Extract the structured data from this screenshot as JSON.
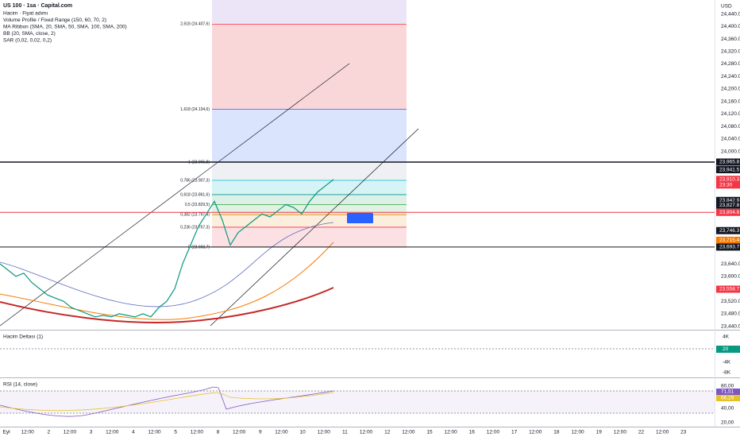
{
  "header": {
    "symbol": "US 100 · 1sa · Capital.com",
    "indicators": [
      "Hacim · Fiyat adımı",
      "Volume Profile / Fixed Range (150, 60, 70, 2)",
      "MA Ribbon (SMA, 20, SMA, 50, SMA, 100, SMA, 200)",
      "BB (20, SMA, close, 2)",
      "SAR (0,02, 0,02, 0,2)"
    ]
  },
  "price_axis": {
    "currency": "USD",
    "ticks": [
      "24,440.0",
      "24,400.0",
      "24,360.0",
      "24,320.0",
      "24,280.0",
      "24,240.0",
      "24,200.0",
      "24,160.0",
      "24,120.0",
      "24,080.0",
      "24,040.0",
      "24,000.0",
      "23,640.0",
      "23,600.0",
      "23,520.0",
      "23,480.0",
      "23,440.0"
    ],
    "badges": [
      {
        "label": "23,965.8",
        "price": 23965.8,
        "color": "#131722"
      },
      {
        "label": "23,941.5",
        "price": 23941.5,
        "color": "#131722"
      },
      {
        "label": "23,910.3",
        "price": 23910.3,
        "color": "#f23645",
        "timer": "23:30"
      },
      {
        "label": "23,842.9",
        "price": 23842.9,
        "color": "#131722"
      },
      {
        "label": "23,827.8",
        "price": 23827.8,
        "color": "#131722"
      },
      {
        "label": "23,804.8",
        "price": 23804.8,
        "color": "#f23645"
      },
      {
        "label": "23,746.3",
        "price": 23746.3,
        "color": "#131722"
      },
      {
        "label": "23,715.4",
        "price": 23715.4,
        "color": "#f57c00"
      },
      {
        "label": "23,693.7",
        "price": 23693.7,
        "color": "#131722"
      },
      {
        "label": "23,558.7",
        "price": 23558.7,
        "color": "#f23645"
      }
    ]
  },
  "levels": [
    {
      "price": 23965.8,
      "color": "#131722"
    },
    {
      "price": 23804.8,
      "color": "#f23645"
    },
    {
      "price": 23693.7,
      "color": "#131722"
    }
  ],
  "fib": [
    {
      "label": "2,618 (24.407,6)",
      "price": 24407.6,
      "color": "#f23645",
      "zone": "#f9d7d9"
    },
    {
      "label": "1,618 (24.134,6)",
      "price": 24134.6,
      "color": "#2962ff",
      "zone": "#dbe4fd"
    },
    {
      "label": "1 (23.965,8)",
      "price": 23965.8,
      "color": "#787b86",
      "zone": "#eef0f3"
    },
    {
      "label": "0,786 (23.907,3)",
      "price": 23907.3,
      "color": "#00bcd4",
      "zone": "#d6f3f6"
    },
    {
      "label": "0,618 (23.861,6)",
      "price": 23861.6,
      "color": "#089981",
      "zone": "#dcefe9"
    },
    {
      "label": "0,5 (23.829,5)",
      "price": 23829.5,
      "color": "#4caf50",
      "zone": "#e2f1e3"
    },
    {
      "label": "0,382 (23.797,4)",
      "price": 23797.4,
      "color": "#f57c00",
      "zone": "#fbeedd"
    },
    {
      "label": "0,236 (23.757,3)",
      "price": 23757.3,
      "color": "#f23645",
      "zone": "#fbe1e3"
    },
    {
      "label": "0 (23.693,7)",
      "price": 23693.7,
      "color": "#787b86"
    }
  ],
  "price_closes": [
    23640,
    23620,
    23600,
    23610,
    23580,
    23560,
    23540,
    23530,
    23520,
    23500,
    23490,
    23480,
    23470,
    23475,
    23470,
    23480,
    23475,
    23470,
    23480,
    23470,
    23500,
    23520,
    23560,
    23640,
    23700,
    23760,
    23800,
    23840,
    23780,
    23700,
    23740,
    23760,
    23780,
    23800,
    23790,
    23810,
    23830,
    23820,
    23800,
    23840,
    23870,
    23890,
    23910
  ],
  "delta_pane": {
    "title": "Hacim Deltası (1)",
    "ticks": [
      "4K",
      "-4K",
      "-8K"
    ],
    "badge": "20"
  },
  "rsi_pane": {
    "title": "RSI (14, close)",
    "ticks": [
      "80,00",
      "40,00",
      "20,00"
    ],
    "badges": [
      {
        "label": "71,51",
        "color": "#7e57c2"
      },
      {
        "label": "66,29",
        "color": "#e6c229"
      }
    ]
  },
  "time_axis": [
    "Eyl",
    "12:00",
    "2",
    "12:00",
    "3",
    "12:00",
    "4",
    "12:00",
    "5",
    "12:00",
    "8",
    "12:00",
    "9",
    "12:00",
    "10",
    "12:00",
    "11",
    "12:00",
    "12",
    "12:00",
    "15",
    "12:00",
    "16",
    "12:00",
    "17",
    "12:00",
    "18",
    "12:00",
    "19",
    "12:00",
    "22",
    "12:00",
    "23"
  ]
}
